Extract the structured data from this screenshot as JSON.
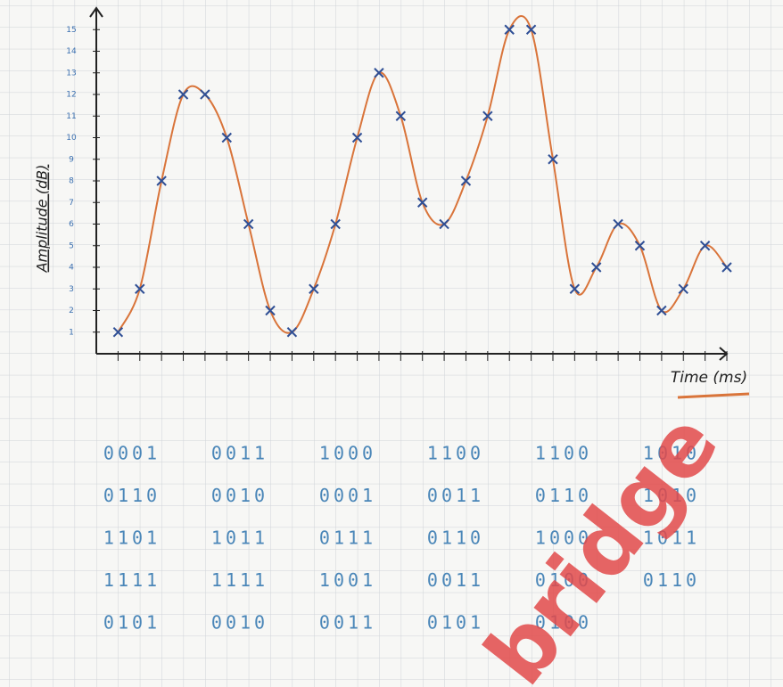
{
  "chart_data": {
    "type": "line",
    "y_label": "Amplitude (dB)",
    "x_label": "Time (ms)",
    "x": [
      1,
      2,
      3,
      4,
      5,
      6,
      7,
      8,
      9,
      10,
      11,
      12,
      13,
      14,
      15,
      16,
      17,
      18,
      19,
      20,
      21,
      22,
      23,
      24,
      25,
      26,
      27,
      28,
      29
    ],
    "values": [
      1,
      3,
      8,
      12,
      12,
      10,
      6,
      2,
      1,
      3,
      6,
      10,
      13,
      11,
      7,
      6,
      8,
      11,
      15,
      15,
      9,
      3,
      4,
      6,
      5,
      2,
      3,
      5,
      4
    ],
    "color": "#d9743a",
    "marker_color": "#2f4f95",
    "xlim": [
      0,
      29
    ],
    "ylim": [
      0,
      16
    ],
    "yticks": [
      1,
      2,
      3,
      4,
      5,
      6,
      7,
      8,
      9,
      10,
      11,
      12,
      13,
      14,
      15
    ]
  },
  "codes": [
    [
      "0001",
      "0011",
      "1000",
      "1100",
      "1100",
      "1010"
    ],
    [
      "0110",
      "0010",
      "0001",
      "0011",
      "0110",
      "1010"
    ],
    [
      "1101",
      "1011",
      "0111",
      "0110",
      "1000",
      "1011"
    ],
    [
      "1111",
      "1111",
      "1001",
      "0011",
      "0100",
      "0110"
    ],
    [
      "0101",
      "0010",
      "0011",
      "0101",
      "0100"
    ]
  ],
  "watermark": "bridge"
}
